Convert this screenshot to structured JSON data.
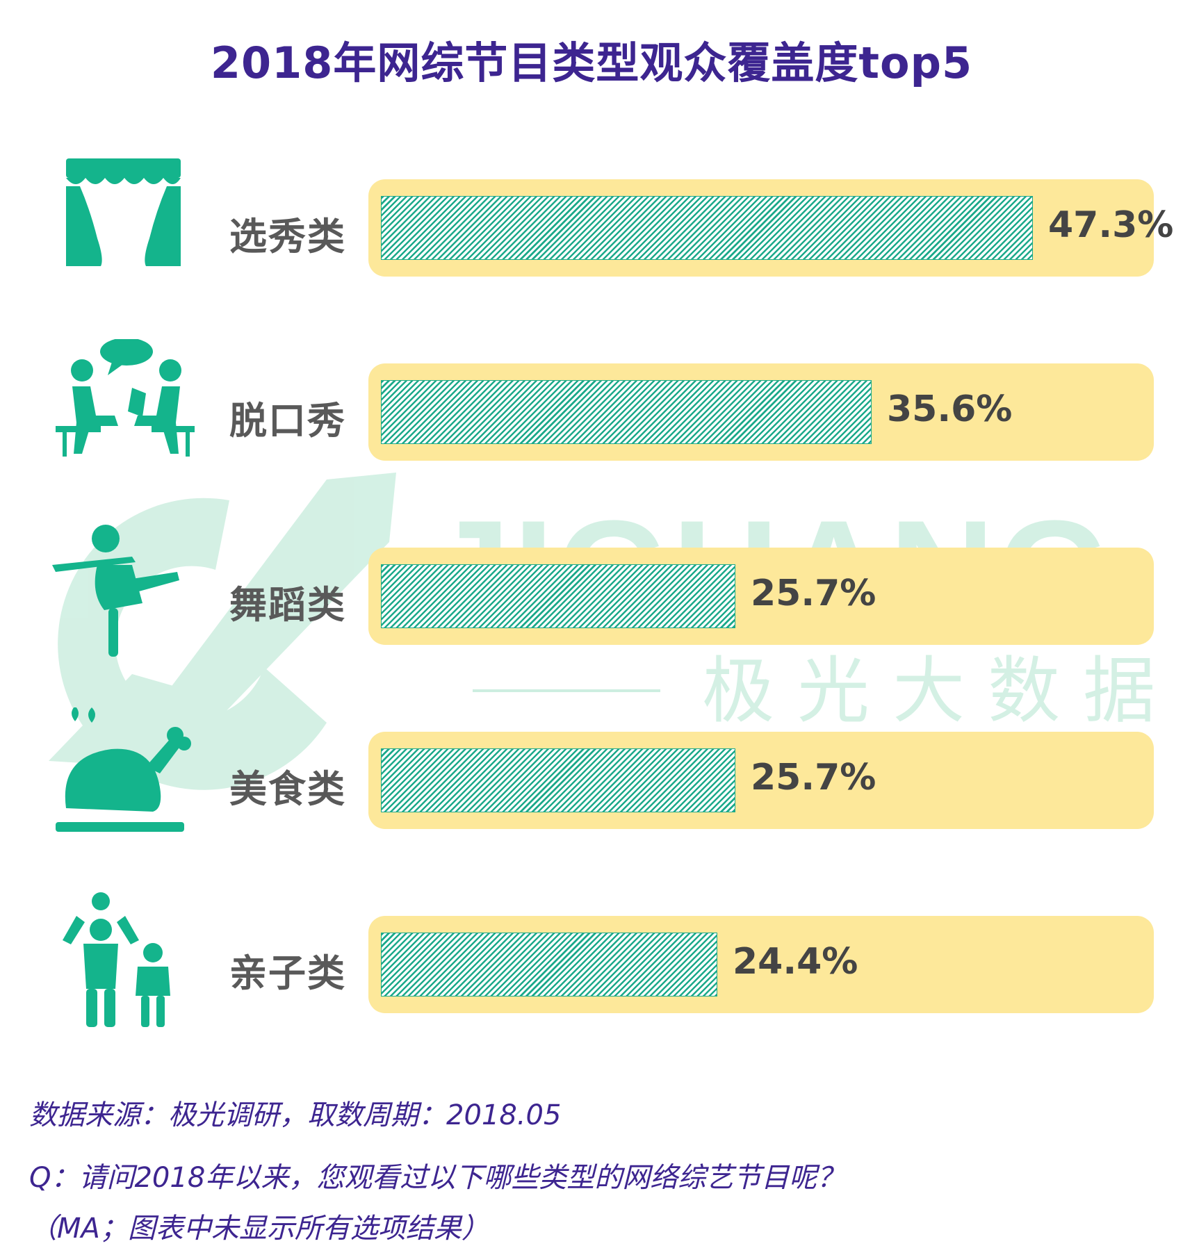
{
  "title": "2018年网综节目类型观众覆盖度top5",
  "watermark": {
    "brand_latin": "JIGUANG",
    "brand_cn": "极 光 大 数 据"
  },
  "colors": {
    "title": "#3d2590",
    "track": "#fde89a",
    "bar": "#1ba98a",
    "icon": "#14b48c",
    "label": "#595959"
  },
  "chart_data": {
    "type": "bar",
    "orientation": "horizontal",
    "categories": [
      "选秀类",
      "脱口秀",
      "舞蹈类",
      "美食类",
      "亲子类"
    ],
    "values": [
      47.3,
      35.6,
      25.7,
      25.7,
      24.4
    ],
    "value_labels": [
      "47.3%",
      "35.6%",
      "25.7%",
      "25.7%",
      "24.4%"
    ],
    "icons": [
      "stage-curtain-icon",
      "talk-show-icon",
      "dancer-icon",
      "roast-chicken-icon",
      "parent-child-icon"
    ],
    "xlim": [
      0,
      50
    ],
    "grid": false,
    "legend": "none"
  },
  "notes": {
    "source": "数据来源：极光调研，取数周期：2018.05",
    "question": "Q：请问2018年以来，您观看过以下哪些类型的网络综艺节目呢？",
    "note": "（MA；图表中未显示所有选项结果）"
  }
}
